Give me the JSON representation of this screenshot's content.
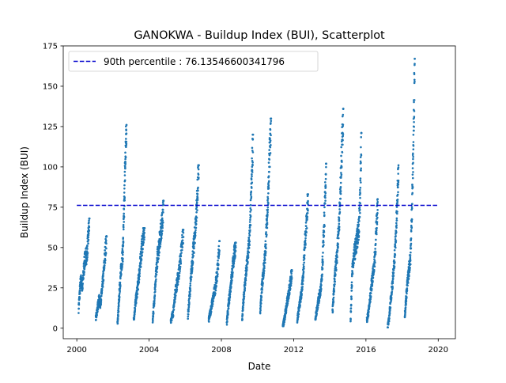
{
  "chart_data": {
    "type": "scatter",
    "title": "GANOKWA - Buildup Index (BUI), Scatterplot",
    "xlabel": "Date",
    "ylabel": "Buildup Index (BUI)",
    "xlim": [
      1999.25,
      2020.95
    ],
    "ylim": [
      -6.5,
      175
    ],
    "x_ticks": [
      2000,
      2004,
      2008,
      2012,
      2016,
      2020
    ],
    "x_tick_labels": [
      "2000",
      "2004",
      "2008",
      "2012",
      "2016",
      "2020"
    ],
    "y_ticks": [
      0,
      25,
      50,
      75,
      100,
      125,
      150,
      175
    ],
    "y_tick_labels": [
      "0",
      "25",
      "50",
      "75",
      "100",
      "125",
      "150",
      "175"
    ],
    "grid": false,
    "legend": {
      "position": "upper-left",
      "entries": [
        "90th percentile : 76.13546600341796"
      ]
    },
    "reference_line": {
      "label": "90th percentile : 76.13546600341796",
      "value": 76.13546600341796,
      "x_range": [
        2000,
        2020
      ],
      "color": "#0000cd",
      "style": "dashed"
    },
    "series_color": "#1f77b4",
    "seasons": [
      {
        "x_range": [
          2000.1,
          2000.7
        ],
        "shape": [
          [
            0,
            12
          ],
          [
            0.08,
            20
          ],
          [
            0.2,
            30
          ],
          [
            0.35,
            25
          ],
          [
            0.5,
            38
          ],
          [
            0.62,
            45
          ],
          [
            0.75,
            45
          ],
          [
            0.88,
            55
          ],
          [
            1,
            68
          ]
        ],
        "x": 2000.7,
        "y": 68
      },
      {
        "x_range": [
          2001.05,
          2001.65
        ],
        "shape": [
          [
            0,
            6
          ],
          [
            0.15,
            12
          ],
          [
            0.3,
            18
          ],
          [
            0.42,
            15
          ],
          [
            0.55,
            22
          ],
          [
            0.7,
            32
          ],
          [
            0.85,
            45
          ],
          [
            1,
            57
          ]
        ],
        "x": 2001.65,
        "y": 57
      },
      {
        "x_range": [
          2002.25,
          2002.75
        ],
        "shape": [
          [
            0,
            3
          ],
          [
            0.12,
            12
          ],
          [
            0.25,
            25
          ],
          [
            0.45,
            40
          ],
          [
            0.6,
            47
          ],
          [
            0.72,
            70
          ],
          [
            0.85,
            100
          ],
          [
            1,
            126
          ]
        ],
        "x": 2002.75,
        "y": 126
      },
      {
        "x_range": [
          2003.15,
          2003.75
        ],
        "shape": [
          [
            0,
            5
          ],
          [
            0.15,
            15
          ],
          [
            0.3,
            22
          ],
          [
            0.45,
            30
          ],
          [
            0.6,
            40
          ],
          [
            0.78,
            52
          ],
          [
            1,
            62
          ]
        ],
        "x": 2003.75,
        "y": 62
      },
      {
        "x_range": [
          2004.2,
          2004.8
        ],
        "shape": [
          [
            0,
            5
          ],
          [
            0.15,
            18
          ],
          [
            0.3,
            32
          ],
          [
            0.45,
            45
          ],
          [
            0.6,
            52
          ],
          [
            0.75,
            60
          ],
          [
            0.9,
            66
          ],
          [
            1,
            79
          ]
        ],
        "x": 2004.8,
        "y": 79
      },
      {
        "x_range": [
          2005.2,
          2005.9
        ],
        "shape": [
          [
            0,
            5
          ],
          [
            0.2,
            10
          ],
          [
            0.35,
            22
          ],
          [
            0.5,
            28
          ],
          [
            0.65,
            35
          ],
          [
            0.8,
            45
          ],
          [
            1,
            61
          ]
        ],
        "x": 2005.9,
        "y": 61
      },
      {
        "x_range": [
          2006.15,
          2006.75
        ],
        "shape": [
          [
            0,
            8
          ],
          [
            0.15,
            20
          ],
          [
            0.3,
            33
          ],
          [
            0.45,
            45
          ],
          [
            0.6,
            55
          ],
          [
            0.72,
            65
          ],
          [
            0.85,
            80
          ],
          [
            1,
            101
          ]
        ],
        "x": 2006.75,
        "y": 101
      },
      {
        "x_range": [
          2007.3,
          2007.9
        ],
        "shape": [
          [
            0,
            5
          ],
          [
            0.15,
            10
          ],
          [
            0.3,
            15
          ],
          [
            0.45,
            20
          ],
          [
            0.6,
            25
          ],
          [
            0.75,
            32
          ],
          [
            0.88,
            42
          ],
          [
            1,
            54
          ]
        ],
        "x": 2007.9,
        "y": 54
      },
      {
        "x_range": [
          2008.3,
          2008.8
        ],
        "shape": [
          [
            0,
            3
          ],
          [
            0.15,
            12
          ],
          [
            0.3,
            20
          ],
          [
            0.5,
            30
          ],
          [
            0.7,
            40
          ],
          [
            0.85,
            47
          ],
          [
            1,
            53
          ]
        ],
        "x": 2008.8,
        "y": 53
      },
      {
        "x_range": [
          2009.15,
          2009.75
        ],
        "shape": [
          [
            0,
            5
          ],
          [
            0.15,
            20
          ],
          [
            0.3,
            30
          ],
          [
            0.45,
            40
          ],
          [
            0.6,
            50
          ],
          [
            0.72,
            60
          ],
          [
            0.85,
            85
          ],
          [
            1,
            120
          ]
        ],
        "x": 2009.75,
        "y": 120
      },
      {
        "x_range": [
          2010.15,
          2010.75
        ],
        "shape": [
          [
            0,
            10
          ],
          [
            0.15,
            25
          ],
          [
            0.3,
            35
          ],
          [
            0.45,
            45
          ],
          [
            0.6,
            65
          ],
          [
            0.72,
            80
          ],
          [
            0.85,
            105
          ],
          [
            1,
            130
          ]
        ],
        "x": 2010.75,
        "y": 130
      },
      {
        "x_range": [
          2011.4,
          2011.9
        ],
        "shape": [
          [
            0,
            1
          ],
          [
            0.15,
            5
          ],
          [
            0.3,
            10
          ],
          [
            0.45,
            15
          ],
          [
            0.6,
            20
          ],
          [
            0.75,
            25
          ],
          [
            0.9,
            30
          ],
          [
            1,
            36
          ]
        ],
        "x": 2011.9,
        "y": 36
      },
      {
        "x_range": [
          2012.2,
          2012.8
        ],
        "shape": [
          [
            0,
            5
          ],
          [
            0.15,
            12
          ],
          [
            0.3,
            18
          ],
          [
            0.45,
            25
          ],
          [
            0.6,
            40
          ],
          [
            0.72,
            55
          ],
          [
            0.85,
            65
          ],
          [
            1,
            83
          ]
        ],
        "x": 2012.8,
        "y": 83
      },
      {
        "x_range": [
          2013.2,
          2013.8
        ],
        "shape": [
          [
            0,
            5
          ],
          [
            0.15,
            12
          ],
          [
            0.3,
            18
          ],
          [
            0.45,
            22
          ],
          [
            0.6,
            30
          ],
          [
            0.72,
            50
          ],
          [
            0.85,
            70
          ],
          [
            1,
            102
          ]
        ],
        "x": 2013.8,
        "y": 102
      },
      {
        "x_range": [
          2014.15,
          2014.75
        ],
        "shape": [
          [
            0,
            10
          ],
          [
            0.12,
            22
          ],
          [
            0.25,
            35
          ],
          [
            0.4,
            45
          ],
          [
            0.55,
            60
          ],
          [
            0.68,
            75
          ],
          [
            0.8,
            100
          ],
          [
            0.9,
            120
          ],
          [
            1,
            136
          ]
        ],
        "x": 2014.75,
        "y": 136
      },
      {
        "x_range": [
          2015.15,
          2015.75
        ],
        "shape": [
          [
            0,
            5
          ],
          [
            0.15,
            35
          ],
          [
            0.3,
            45
          ],
          [
            0.45,
            50
          ],
          [
            0.6,
            55
          ],
          [
            0.75,
            62
          ],
          [
            0.88,
            80
          ],
          [
            1,
            121
          ]
        ],
        "x": 2015.75,
        "y": 121
      },
      {
        "x_range": [
          2016.05,
          2016.65
        ],
        "shape": [
          [
            0,
            5
          ],
          [
            0.15,
            10
          ],
          [
            0.3,
            18
          ],
          [
            0.45,
            28
          ],
          [
            0.6,
            35
          ],
          [
            0.75,
            45
          ],
          [
            0.88,
            62
          ],
          [
            1,
            80
          ]
        ],
        "x": 2016.65,
        "y": 80
      },
      {
        "x_range": [
          2017.2,
          2017.8
        ],
        "shape": [
          [
            0,
            1
          ],
          [
            0.12,
            5
          ],
          [
            0.25,
            15
          ],
          [
            0.4,
            25
          ],
          [
            0.55,
            35
          ],
          [
            0.7,
            50
          ],
          [
            0.85,
            70
          ],
          [
            1,
            101
          ]
        ],
        "x": 2017.8,
        "y": 101
      },
      {
        "x_range": [
          2018.15,
          2018.7
        ],
        "shape": [
          [
            0,
            8
          ],
          [
            0.15,
            20
          ],
          [
            0.3,
            30
          ],
          [
            0.45,
            38
          ],
          [
            0.58,
            45
          ],
          [
            0.7,
            70
          ],
          [
            0.82,
            100
          ],
          [
            0.92,
            135
          ],
          [
            1,
            167
          ]
        ],
        "x": 2018.7,
        "y": 167
      }
    ]
  }
}
